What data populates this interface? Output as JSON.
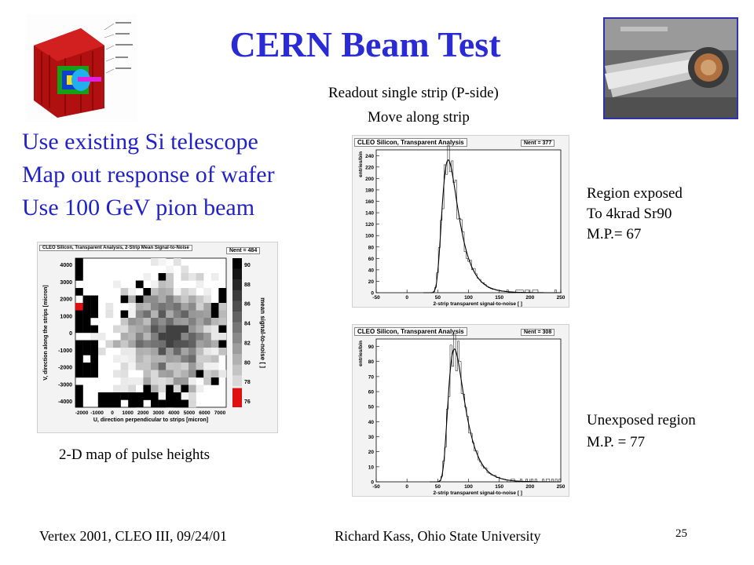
{
  "slide": {
    "title": "CERN Beam Test",
    "bullets": [
      "Use existing Si telescope",
      "Map out response of wafer",
      "Use 100 GeV pion beam"
    ],
    "top_caption_1": "Readout single strip (P-side)",
    "top_caption_2": "Move along strip",
    "map_caption": "2-D map of pulse heights",
    "region1_caption": [
      "Region exposed",
      "To 4krad Sr90",
      "M.P.= 67"
    ],
    "region2_caption": [
      "Unexposed region",
      "M.P. = 77"
    ],
    "footer_left": "Vertex 2001, CLEO III,  09/24/01",
    "footer_center": "Richard Kass, Ohio State University",
    "page_number": "25"
  },
  "colors": {
    "title": "#2b2bd6",
    "bullets": "#2222c8",
    "fit_curve": "#000000",
    "hot_pixel": "#e01010"
  },
  "icons": {
    "top_left": "detector-cutaway-image",
    "top_right": "beam-pipe-photo"
  },
  "chart_data": [
    {
      "type": "heatmap",
      "title": "CLEO Silicon, Transparent Analysis, 2-Strip Mean Signal-to-Noise",
      "stat": "Nent = 484",
      "xlabel": "U, direction perpendicular to strips [micron]",
      "ylabel": "V, direction along the strips [micron]",
      "colorbar_label": "mean signal-to-noise [ ]",
      "x_ticks": [
        "-2000",
        "-1000",
        "0",
        "1000",
        "2000",
        "3000",
        "4000",
        "5000",
        "6000",
        "7000"
      ],
      "y_ticks": [
        "4000",
        "3000",
        "2000",
        "1000",
        "0",
        "-1000",
        "-2000",
        "-3000",
        "-4000"
      ],
      "colorbar_ticks": [
        "90",
        "88",
        "86",
        "84",
        "82",
        "80",
        "78",
        "76"
      ],
      "zlim": [
        76,
        90
      ],
      "nx": 20,
      "ny": 20
    },
    {
      "type": "bar",
      "title": "CLEO Silicon, Transparent Analysis",
      "stat": "Nent = 377",
      "xlabel": "2-strip transparent signal-to-noise [ ]",
      "ylabel": "entries/bin",
      "x_ticks": [
        "-50",
        "0",
        "50",
        "100",
        "150",
        "200",
        "250"
      ],
      "y_ticks": [
        "240",
        "220",
        "200",
        "180",
        "160",
        "140",
        "120",
        "100",
        "80",
        "60",
        "40",
        "20",
        "0"
      ],
      "xlim": [
        -50,
        250
      ],
      "ylim": [
        0,
        250
      ],
      "peak": 67
    },
    {
      "type": "bar",
      "title": "CLEO Silicon, Transparent Analysis",
      "stat": "Nent = 308",
      "xlabel": "2-strip transparent signal-to-noise [ ]",
      "ylabel": "entries/bin",
      "x_ticks": [
        "-50",
        "0",
        "50",
        "100",
        "150",
        "200",
        "250"
      ],
      "y_ticks": [
        "90",
        "80",
        "70",
        "60",
        "50",
        "40",
        "30",
        "20",
        "10",
        "0"
      ],
      "xlim": [
        -50,
        250
      ],
      "ylim": [
        0,
        95
      ],
      "peak": 77
    }
  ]
}
